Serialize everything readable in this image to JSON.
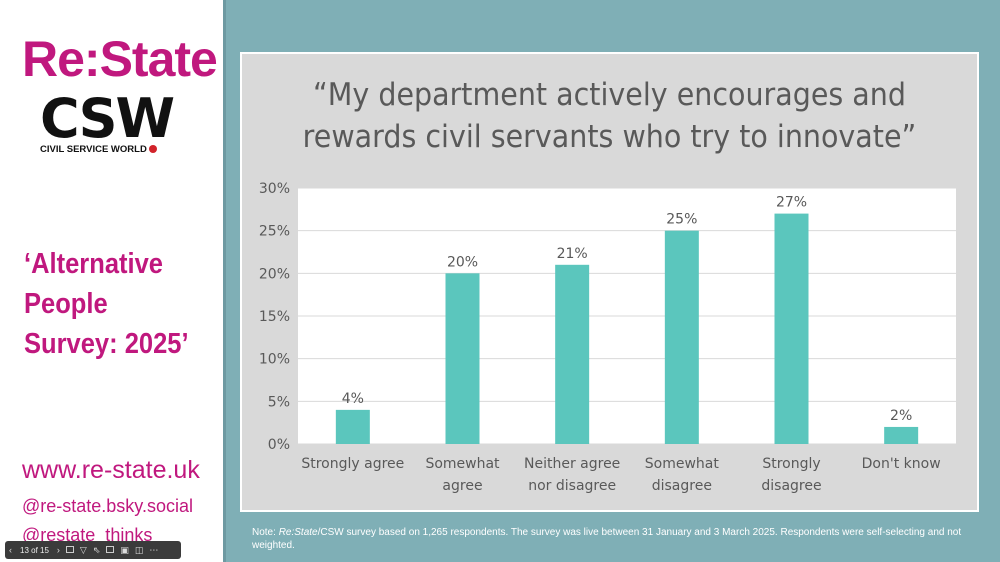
{
  "sidebar": {
    "brand": "Re:State",
    "logo_mark": "CSW",
    "logo_subtitle": "CIVIL SERVICE WORLD",
    "survey_title_lines": [
      "‘Alternative",
      "People",
      "Survey: 2025’"
    ],
    "website": "www.re-state.uk",
    "social_1": "@re-state.bsky.social",
    "social_2": "@restate_thinks"
  },
  "toolbar": {
    "counter": "13 of 15",
    "prev_icon": "chevron-left-icon",
    "next_icon": "chevron-right-icon"
  },
  "chart_title_lines": [
    "“My department actively encourages and",
    "rewards civil servants who try to innovate”"
  ],
  "footnote": {
    "prefix": "Note: ",
    "italic": "Re:State",
    "rest": "/CSW survey based on 1,265 respondents. The survey was live between 31 January and 3 March 2025. Respondents were self-selecting and not weighted."
  },
  "colors": {
    "accent": "#c0187e",
    "bar": "#5bc6bd",
    "background": "#7fafb6",
    "panel": "#d9d9d9"
  },
  "chart_data": {
    "type": "bar",
    "title": "“My department actively encourages and rewards civil servants who try to innovate”",
    "categories": [
      [
        "Strongly agree"
      ],
      [
        "Somewhat",
        "agree"
      ],
      [
        "Neither agree",
        "nor disagree"
      ],
      [
        "Somewhat",
        "disagree"
      ],
      [
        "Strongly",
        "disagree"
      ],
      [
        "Don't know"
      ]
    ],
    "values": [
      4,
      20,
      21,
      25,
      27,
      2
    ],
    "data_labels": [
      "4%",
      "20%",
      "21%",
      "25%",
      "27%",
      "2%"
    ],
    "yticks": [
      "0%",
      "5%",
      "10%",
      "15%",
      "20%",
      "25%",
      "30%"
    ],
    "ylim": [
      0,
      30
    ],
    "xlabel": "",
    "ylabel": ""
  }
}
